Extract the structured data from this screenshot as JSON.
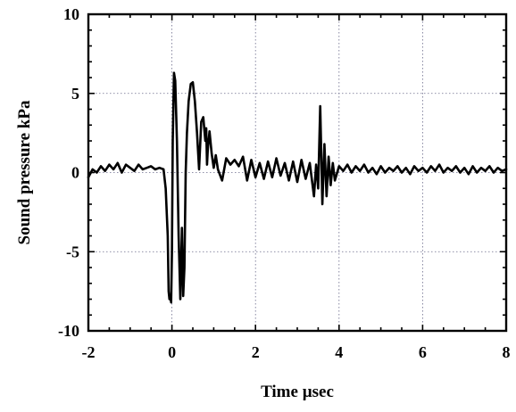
{
  "chart_data": {
    "type": "line",
    "title": "",
    "xlabel": "Time µsec",
    "ylabel": "Sound pressure kPa",
    "xlim": [
      -2,
      8
    ],
    "ylim": [
      -10,
      10
    ],
    "x_ticks": [
      -2,
      0,
      2,
      4,
      6,
      8
    ],
    "x_tick_labels": [
      "-2",
      "0",
      "2",
      "4",
      "6",
      "8"
    ],
    "y_ticks": [
      -10,
      -5,
      0,
      5,
      10
    ],
    "y_tick_labels": [
      "-10",
      "-5",
      "0",
      "5",
      "10"
    ],
    "grid": true,
    "series": [
      {
        "x": [
          -2.0,
          -1.9,
          -1.8,
          -1.7,
          -1.6,
          -1.5,
          -1.4,
          -1.3,
          -1.2,
          -1.1,
          -1.0,
          -0.9,
          -0.8,
          -0.7,
          -0.6,
          -0.5,
          -0.4,
          -0.3,
          -0.2,
          -0.15,
          -0.1,
          -0.08,
          -0.06,
          -0.04,
          -0.02,
          0.0,
          0.02,
          0.05,
          0.08,
          0.12,
          0.16,
          0.2,
          0.24,
          0.27,
          0.3,
          0.33,
          0.36,
          0.4,
          0.45,
          0.5,
          0.55,
          0.6,
          0.65,
          0.7,
          0.75,
          0.8,
          0.82,
          0.84,
          0.86,
          0.9,
          0.95,
          1.0,
          1.05,
          1.1,
          1.2,
          1.3,
          1.4,
          1.5,
          1.6,
          1.7,
          1.8,
          1.9,
          2.0,
          2.1,
          2.2,
          2.3,
          2.4,
          2.5,
          2.6,
          2.7,
          2.8,
          2.9,
          3.0,
          3.1,
          3.2,
          3.3,
          3.4,
          3.45,
          3.5,
          3.55,
          3.6,
          3.65,
          3.7,
          3.75,
          3.8,
          3.85,
          3.9,
          4.0,
          4.1,
          4.2,
          4.3,
          4.4,
          4.5,
          4.6,
          4.7,
          4.8,
          4.9,
          5.0,
          5.1,
          5.2,
          5.3,
          5.4,
          5.5,
          5.6,
          5.7,
          5.8,
          5.9,
          6.0,
          6.1,
          6.2,
          6.3,
          6.4,
          6.5,
          6.6,
          6.7,
          6.8,
          6.9,
          7.0,
          7.1,
          7.2,
          7.3,
          7.4,
          7.5,
          7.6,
          7.7,
          7.8,
          7.9,
          8.0
        ],
        "y": [
          -0.3,
          0.2,
          0.0,
          0.4,
          0.1,
          0.5,
          0.2,
          0.6,
          0.0,
          0.5,
          0.3,
          0.1,
          0.5,
          0.2,
          0.3,
          0.4,
          0.2,
          0.3,
          0.2,
          -1.0,
          -4.0,
          -7.5,
          -8.0,
          -7.8,
          -8.2,
          -5.0,
          2.0,
          6.3,
          5.8,
          2.0,
          -4.0,
          -8.0,
          -3.5,
          -7.8,
          -6.0,
          0.0,
          2.5,
          4.5,
          5.6,
          5.7,
          4.5,
          2.5,
          0.2,
          3.2,
          3.5,
          2.0,
          2.8,
          0.5,
          1.5,
          2.6,
          1.2,
          0.3,
          1.1,
          0.2,
          -0.5,
          0.9,
          0.5,
          0.8,
          0.4,
          1.0,
          -0.5,
          0.8,
          -0.3,
          0.6,
          -0.4,
          0.7,
          -0.3,
          0.9,
          -0.2,
          0.6,
          -0.5,
          0.7,
          -0.6,
          0.8,
          -0.4,
          0.6,
          -1.5,
          0.5,
          -1.0,
          4.2,
          -2.0,
          1.8,
          -1.5,
          1.0,
          -0.8,
          0.6,
          -0.5,
          0.4,
          0.1,
          0.5,
          0.0,
          0.4,
          0.1,
          0.5,
          0.0,
          0.3,
          -0.1,
          0.4,
          0.0,
          0.3,
          0.1,
          0.4,
          0.0,
          0.3,
          -0.1,
          0.4,
          0.1,
          0.3,
          0.0,
          0.4,
          0.1,
          0.5,
          0.0,
          0.3,
          0.1,
          0.4,
          0.0,
          0.3,
          -0.1,
          0.4,
          0.0,
          0.3,
          0.1,
          0.4,
          0.0,
          0.3,
          0.1,
          0.2
        ]
      }
    ]
  }
}
